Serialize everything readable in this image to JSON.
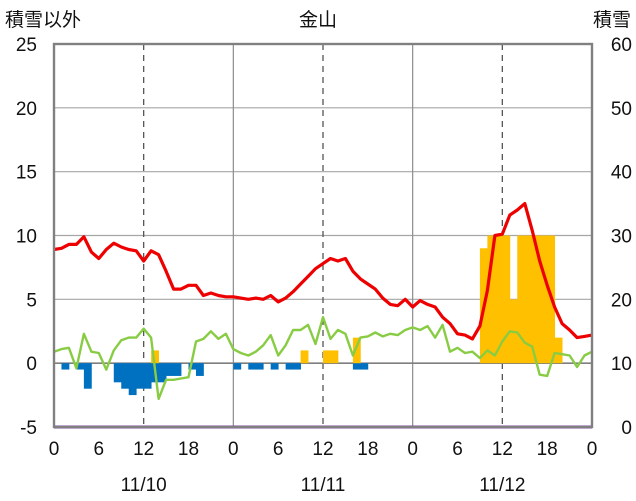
{
  "chart_data": {
    "type": "bar+line",
    "title": "金山",
    "left_axis_label": "積雪以外",
    "right_axis_label": "積雪",
    "left_ylim": [
      -5,
      25
    ],
    "left_ticks": [
      -5,
      0,
      5,
      10,
      15,
      20,
      25
    ],
    "right_ylim": [
      0,
      60
    ],
    "right_ticks": [
      0,
      10,
      20,
      30,
      40,
      50,
      60
    ],
    "x_range_hours": [
      0,
      72
    ],
    "x_tick_hours": [
      0,
      6,
      12,
      18,
      24,
      30,
      36,
      42,
      48,
      54,
      60,
      66,
      72
    ],
    "x_tick_labels": [
      "0",
      "6",
      "12",
      "18",
      "0",
      "6",
      "12",
      "18",
      "0",
      "6",
      "12",
      "18",
      "0"
    ],
    "dates": [
      {
        "label": "11/10",
        "hour": 12
      },
      {
        "label": "11/11",
        "hour": 36
      },
      {
        "label": "11/12",
        "hour": 60
      }
    ],
    "grid": true,
    "series": [
      {
        "color": "#ee0000",
        "axis": "left",
        "kind": "line",
        "x": [
          0,
          1,
          2,
          3,
          4,
          5,
          6,
          7,
          8,
          9,
          10,
          11,
          12,
          13,
          14,
          15,
          16,
          17,
          18,
          19,
          20,
          21,
          22,
          23,
          24,
          25,
          26,
          27,
          28,
          29,
          30,
          31,
          32,
          33,
          34,
          35,
          36,
          37,
          38,
          39,
          40,
          41,
          42,
          43,
          44,
          45,
          46,
          47,
          48,
          49,
          50,
          51,
          52,
          53,
          54,
          55,
          56,
          57,
          58,
          59,
          60,
          61,
          62,
          63,
          64,
          65,
          66,
          67,
          68,
          69,
          70,
          71,
          72
        ],
        "values": [
          8.9,
          9.0,
          9.3,
          9.3,
          9.9,
          8.7,
          8.2,
          8.9,
          9.4,
          9.1,
          8.9,
          8.8,
          8.0,
          8.8,
          8.5,
          7.2,
          5.8,
          5.8,
          6.1,
          6.1,
          5.3,
          5.5,
          5.3,
          5.2,
          5.2,
          5.1,
          5.0,
          5.1,
          5.0,
          5.3,
          4.8,
          5.1,
          5.6,
          6.2,
          6.8,
          7.4,
          7.8,
          8.2,
          8.0,
          8.2,
          7.2,
          6.6,
          6.2,
          5.8,
          5.1,
          4.6,
          4.5,
          5.0,
          4.4,
          4.9,
          4.6,
          4.4,
          3.6,
          3.1,
          2.3,
          2.2,
          1.9,
          2.9,
          5.7,
          10.0,
          10.1,
          11.6,
          12.0,
          12.5,
          10.4,
          8.0,
          6.1,
          4.4,
          3.1,
          2.6,
          2.0,
          2.1,
          2.2
        ]
      },
      {
        "color": "#88cc44",
        "axis": "left",
        "kind": "line",
        "x": [
          0,
          1,
          2,
          3,
          4,
          5,
          6,
          7,
          8,
          9,
          10,
          11,
          12,
          13,
          14,
          15,
          16,
          17,
          18,
          19,
          20,
          21,
          22,
          23,
          24,
          25,
          26,
          27,
          28,
          29,
          30,
          31,
          32,
          33,
          34,
          35,
          36,
          37,
          38,
          39,
          40,
          41,
          42,
          43,
          44,
          45,
          46,
          47,
          48,
          49,
          50,
          51,
          52,
          53,
          54,
          55,
          56,
          57,
          58,
          59,
          60,
          61,
          62,
          63,
          64,
          65,
          66,
          67,
          68,
          69,
          70,
          71,
          72
        ],
        "values": [
          0.9,
          1.1,
          1.2,
          -0.4,
          2.3,
          0.9,
          0.8,
          -0.5,
          1.0,
          1.8,
          2.0,
          2.0,
          2.7,
          2.0,
          -2.8,
          -1.3,
          -1.3,
          -1.2,
          -1.1,
          1.7,
          1.9,
          2.5,
          1.9,
          2.3,
          1.1,
          0.8,
          0.6,
          0.9,
          1.4,
          2.2,
          0.6,
          1.4,
          2.6,
          2.6,
          3.0,
          1.5,
          3.6,
          1.9,
          2.6,
          2.3,
          0.6,
          2.0,
          2.1,
          2.4,
          2.1,
          2.3,
          2.2,
          2.6,
          2.8,
          2.6,
          2.9,
          2.0,
          3.0,
          0.9,
          1.2,
          0.8,
          0.9,
          0.4,
          1.0,
          0.6,
          1.7,
          2.5,
          2.4,
          1.6,
          1.3,
          -0.9,
          -1.0,
          0.8,
          0.7,
          0.6,
          -0.3,
          0.6,
          0.9
        ]
      },
      {
        "color": "#0070c0",
        "axis": "left",
        "kind": "bar",
        "x": [
          0.5,
          1.5,
          2.5,
          3.5,
          4.5,
          5.5,
          6.5,
          7.5,
          8.5,
          9.5,
          10.5,
          11.5,
          12.5,
          13.5,
          14.5,
          15.5,
          16.5,
          17.5,
          18.5,
          19.5,
          20.5,
          21.5,
          22.5,
          23.5,
          24.5,
          25.5,
          26.5,
          27.5,
          28.5,
          29.5,
          30.5,
          31.5,
          32.5,
          33.5,
          34.5,
          35.5,
          36.5,
          37.5,
          38.5,
          39.5,
          40.5,
          41.5,
          42.5,
          43.5,
          44.5,
          45.5,
          46.5,
          47.5,
          48.5,
          49.5,
          50.5,
          51.5,
          52.5,
          53.5,
          54.5,
          55.5,
          56.5,
          57.5,
          58.5,
          59.5,
          60.5,
          61.5,
          62.5,
          63.5,
          64.5,
          65.5,
          66.5,
          67.5,
          68.5,
          69.5,
          70.5,
          71.5
        ],
        "values": [
          0,
          -0.5,
          0,
          -0.5,
          -2.0,
          0,
          0,
          0,
          -1.5,
          -2.0,
          -2.5,
          -2.0,
          -2.0,
          -1.5,
          -1.5,
          -1.0,
          -1.0,
          0,
          -0.5,
          -1.0,
          0,
          0,
          0,
          0,
          -0.5,
          0,
          -0.5,
          -0.5,
          0,
          -0.5,
          0,
          -0.5,
          -0.5,
          0,
          0,
          0,
          0,
          0,
          0,
          0,
          -0.5,
          -0.5,
          0,
          0,
          0,
          0,
          0,
          0,
          0,
          0,
          0,
          0,
          0,
          0,
          0,
          0,
          0,
          0,
          0,
          0,
          0,
          0,
          0,
          0,
          0,
          0,
          0,
          0,
          0,
          0,
          0,
          0
        ]
      },
      {
        "color": "#ffc000",
        "axis": "left",
        "kind": "bar",
        "x": [
          0.5,
          1.5,
          2.5,
          3.5,
          4.5,
          5.5,
          6.5,
          7.5,
          8.5,
          9.5,
          10.5,
          11.5,
          12.5,
          13.5,
          14.5,
          15.5,
          16.5,
          17.5,
          18.5,
          19.5,
          20.5,
          21.5,
          22.5,
          23.5,
          24.5,
          25.5,
          26.5,
          27.5,
          28.5,
          29.5,
          30.5,
          31.5,
          32.5,
          33.5,
          34.5,
          35.5,
          36.5,
          37.5,
          38.5,
          39.5,
          40.5,
          41.5,
          42.5,
          43.5,
          44.5,
          45.5,
          46.5,
          47.5,
          48.5,
          49.5,
          50.5,
          51.5,
          52.5,
          53.5,
          54.5,
          55.5,
          56.5,
          57.5,
          58.5,
          59.5,
          60.5,
          61.5,
          62.5,
          63.5,
          64.5,
          65.5,
          66.5,
          67.5,
          68.5,
          69.5,
          70.5,
          71.5
        ],
        "values": [
          0,
          0,
          0,
          0,
          0,
          0,
          0,
          0,
          0,
          0,
          0,
          0,
          0,
          1.0,
          0,
          0,
          0,
          0,
          0,
          0,
          0,
          0,
          0,
          0,
          0,
          0,
          0,
          0,
          0,
          0,
          0,
          0,
          0,
          1.0,
          0,
          0,
          1.0,
          1.0,
          0,
          0,
          2.0,
          0,
          0,
          0,
          0,
          0,
          0,
          0,
          0,
          0,
          0,
          0,
          0,
          0,
          0,
          0,
          0,
          9.0,
          10.0,
          10.0,
          10.0,
          5.0,
          10.0,
          10.0,
          10.0,
          10.0,
          10.0,
          2.0,
          0,
          0,
          0,
          0
        ]
      },
      {
        "color": "#7030a0",
        "axis": "right",
        "kind": "line",
        "x": [
          0,
          72
        ],
        "values": [
          0,
          0
        ]
      }
    ]
  }
}
